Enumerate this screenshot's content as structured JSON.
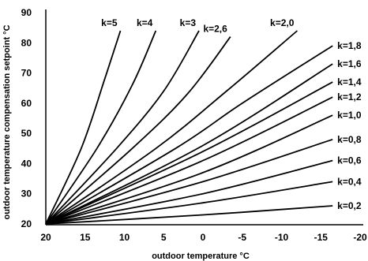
{
  "chart_data": {
    "type": "line",
    "xlabel": "outdoor temperature °C",
    "ylabel": "outdoor temperature compensation setpoint °C",
    "xlim": [
      20,
      -20
    ],
    "ylim": [
      20,
      90
    ],
    "x_ticks": [
      "20",
      "15",
      "10",
      "5",
      "0",
      "-5",
      "-10",
      "-15",
      "-20"
    ],
    "y_ticks": [
      "90",
      "80",
      "70",
      "60",
      "50",
      "40",
      "30",
      "20"
    ],
    "series": [
      {
        "name": "k=5",
        "k": 5.0,
        "points": [
          [
            20,
            20
          ],
          [
            15.5,
            45
          ],
          [
            12.5,
            68
          ],
          [
            10.5,
            84
          ]
        ]
      },
      {
        "name": "k=4",
        "k": 4.0,
        "points": [
          [
            20,
            20
          ],
          [
            13.5,
            45
          ],
          [
            9,
            66
          ],
          [
            6,
            84
          ]
        ]
      },
      {
        "name": "k=3",
        "k": 3.0,
        "points": [
          [
            20,
            20
          ],
          [
            11,
            45
          ],
          [
            5,
            64
          ],
          [
            0.5,
            84
          ]
        ]
      },
      {
        "name": "k=2,6",
        "k": 2.6,
        "points": [
          [
            20,
            20
          ],
          [
            9,
            45
          ],
          [
            2,
            63
          ],
          [
            -3.5,
            82
          ]
        ]
      },
      {
        "name": "k=2,0",
        "k": 2.0,
        "points": [
          [
            20,
            20
          ],
          [
            6,
            45
          ],
          [
            -3,
            64
          ],
          [
            -12,
            84
          ]
        ]
      },
      {
        "name": "k=1,8",
        "k": 1.8,
        "points": [
          [
            20,
            20
          ],
          [
            3.5,
            45
          ],
          [
            -5,
            60
          ],
          [
            -16.5,
            79
          ]
        ]
      },
      {
        "name": "k=1,6",
        "k": 1.6,
        "points": [
          [
            20,
            20
          ],
          [
            0,
            46
          ],
          [
            -16.5,
            73
          ]
        ]
      },
      {
        "name": "k=1,4",
        "k": 1.4,
        "points": [
          [
            20,
            20
          ],
          [
            0,
            44
          ],
          [
            -16.5,
            67
          ]
        ]
      },
      {
        "name": "k=1,2",
        "k": 1.2,
        "points": [
          [
            20,
            20
          ],
          [
            0,
            41
          ],
          [
            -16.5,
            62
          ]
        ]
      },
      {
        "name": "k=1,0",
        "k": 1.0,
        "points": [
          [
            20,
            20
          ],
          [
            0,
            37
          ],
          [
            -16.5,
            56
          ]
        ]
      },
      {
        "name": "k=0,8",
        "k": 0.8,
        "points": [
          [
            20,
            20
          ],
          [
            0,
            34
          ],
          [
            -16.5,
            48
          ]
        ]
      },
      {
        "name": "k=0,6",
        "k": 0.6,
        "points": [
          [
            20,
            20
          ],
          [
            0,
            30
          ],
          [
            -16.5,
            41
          ]
        ]
      },
      {
        "name": "k=0,4",
        "k": 0.4,
        "points": [
          [
            20,
            20
          ],
          [
            0,
            27
          ],
          [
            -16.5,
            34
          ]
        ]
      },
      {
        "name": "k=0,2",
        "k": 0.2,
        "points": [
          [
            20,
            20
          ],
          [
            0,
            23
          ],
          [
            -16.5,
            26
          ]
        ]
      }
    ]
  }
}
